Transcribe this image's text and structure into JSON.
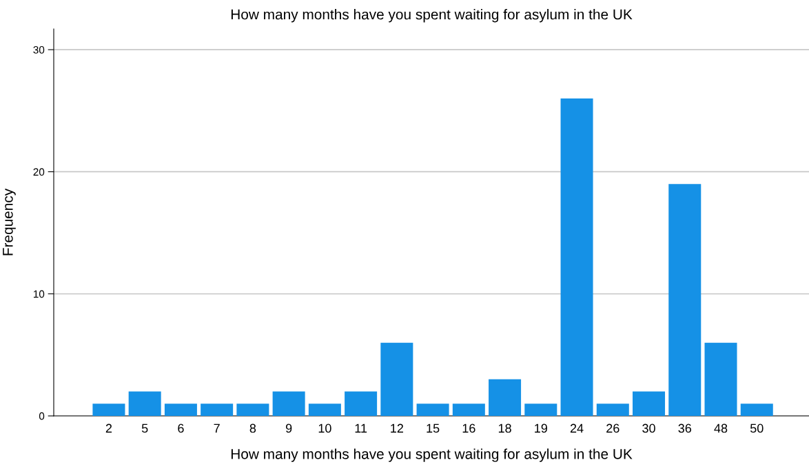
{
  "chart_data": {
    "type": "bar",
    "title": "How many months have you spent waiting for asylum in the UK",
    "xlabel": "How many months have you spent waiting for asylum in the UK",
    "ylabel": "Frequency",
    "categories": [
      "2",
      "5",
      "6",
      "7",
      "8",
      "9",
      "10",
      "11",
      "12",
      "15",
      "16",
      "18",
      "19",
      "24",
      "26",
      "30",
      "36",
      "48",
      "50"
    ],
    "values": [
      1,
      2,
      1,
      1,
      1,
      2,
      1,
      2,
      6,
      1,
      1,
      3,
      1,
      26,
      1,
      2,
      19,
      6,
      1
    ],
    "color": "#1591e6",
    "ylim": [
      0,
      31.7
    ],
    "yticks": [
      0,
      10,
      20,
      30
    ],
    "grid": "y"
  }
}
